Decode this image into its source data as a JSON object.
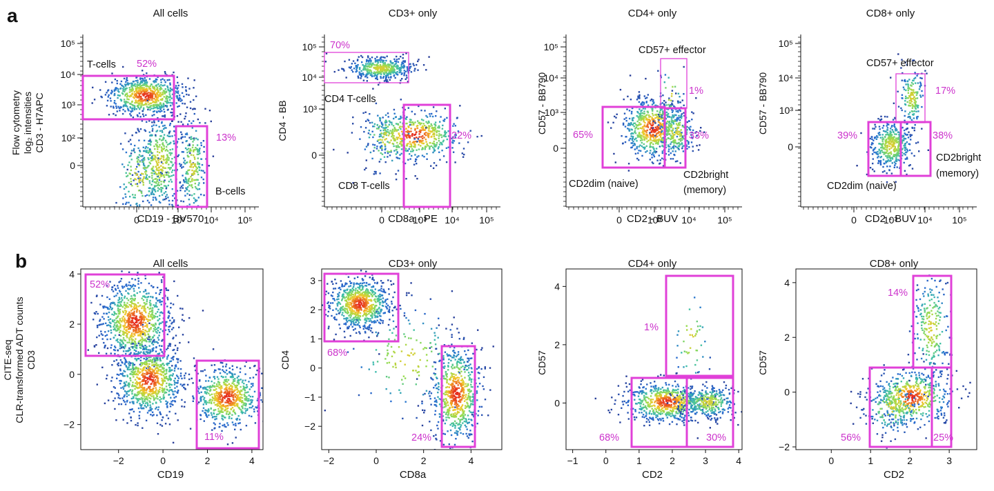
{
  "panel_letters": [
    "a",
    "b"
  ],
  "colors": {
    "gate": "#e040d8",
    "gate_text": "#cc33cc",
    "axis": "#111111"
  },
  "chart_data": [
    {
      "type": "scatter",
      "row": "a",
      "title": "All cells",
      "xlabel": [
        "CD19 - BV570"
      ],
      "ylabel": [
        "Flow cytometry",
        "log₂ intensities",
        "CD3 - H7APC"
      ],
      "scale": "log",
      "xticks": [
        "0",
        "10³",
        "10⁴",
        "10⁵"
      ],
      "yticks": [
        "0",
        "10²",
        "10³",
        "10⁴",
        "10⁵"
      ],
      "gates": [
        {
          "label": "T-cells",
          "pct": "52%"
        },
        {
          "label": "B-cells",
          "pct": "13%"
        }
      ]
    },
    {
      "type": "scatter",
      "row": "a",
      "title": "CD3+ only",
      "xlabel": [
        "CD8a - PE"
      ],
      "ylabel": [
        "CD4 - BB"
      ],
      "scale": "log",
      "xticks": [
        "0",
        "10³",
        "10⁴",
        "10⁵"
      ],
      "yticks": [
        "0",
        "10³",
        "10⁴",
        "10⁵"
      ],
      "gates": [
        {
          "label": "CD4 T-cells",
          "pct": "70%"
        },
        {
          "label": "CD8 T-cells",
          "pct": "22%"
        }
      ]
    },
    {
      "type": "scatter",
      "row": "a",
      "title": "CD4+ only",
      "xlabel": [
        "CD2 - BUV"
      ],
      "ylabel": [
        "CD57 - BB790"
      ],
      "scale": "log",
      "xticks": [
        "0",
        "10³",
        "10⁴",
        "10⁵"
      ],
      "yticks": [
        "0",
        "10³",
        "10⁴",
        "10⁵"
      ],
      "gates": [
        {
          "label": "CD57+ effector",
          "pct": "1%"
        },
        {
          "label": "CD2dim (naive)",
          "pct": "65%"
        },
        {
          "label": "CD2bright (memory)",
          "pct": "33%"
        }
      ]
    },
    {
      "type": "scatter",
      "row": "a",
      "title": "CD8+ only",
      "xlabel": [
        "CD2 - BUV"
      ],
      "ylabel": [
        "CD57 - BB790"
      ],
      "scale": "log",
      "xticks": [
        "0",
        "10³",
        "10⁴",
        "10⁵"
      ],
      "yticks": [
        "0",
        "10³",
        "10⁴",
        "10⁵"
      ],
      "gates": [
        {
          "label": "CD57+ effector",
          "pct": "17%"
        },
        {
          "label": "CD2dim (naive)",
          "pct": "39%"
        },
        {
          "label": "CD2bright (memory)",
          "pct": "38%"
        }
      ]
    },
    {
      "type": "scatter",
      "row": "b",
      "title": "All cells",
      "xlabel": [
        "CD19"
      ],
      "ylabel": [
        "CITE-seq",
        "CLR-transformed ADT counts",
        "CD3"
      ],
      "scale": "linear",
      "xlim": [
        -3.7,
        4.5
      ],
      "ylim": [
        -3,
        4.2
      ],
      "xticks": [
        -2,
        0,
        2,
        4
      ],
      "yticks": [
        -2,
        0,
        2,
        4
      ],
      "gates": [
        {
          "pct": "52%"
        },
        {
          "pct": "11%"
        }
      ]
    },
    {
      "type": "scatter",
      "row": "b",
      "title": "CD3+ only",
      "xlabel": [
        "CD8a"
      ],
      "ylabel": [
        "CD4"
      ],
      "scale": "linear",
      "xlim": [
        -2.3,
        5.3
      ],
      "ylim": [
        -2.8,
        3.4
      ],
      "xticks": [
        -2,
        0,
        2,
        4
      ],
      "yticks": [
        -2,
        -1,
        0,
        1,
        2,
        3
      ],
      "gates": [
        {
          "pct": "68%"
        },
        {
          "pct": "24%"
        }
      ]
    },
    {
      "type": "scatter",
      "row": "b",
      "title": "CD4+ only",
      "xlabel": [
        "CD2"
      ],
      "ylabel": [
        "CD57"
      ],
      "scale": "linear",
      "xlim": [
        -1.2,
        4.1
      ],
      "ylim": [
        -1.6,
        4.6
      ],
      "xticks": [
        -1,
        0,
        1,
        2,
        3,
        4
      ],
      "yticks": [
        0,
        2,
        4
      ],
      "gates": [
        {
          "pct": "1%"
        },
        {
          "pct": "68%"
        },
        {
          "pct": "30%"
        }
      ]
    },
    {
      "type": "scatter",
      "row": "b",
      "title": "CD8+ only",
      "xlabel": [
        "CD2"
      ],
      "ylabel": [
        "CD57"
      ],
      "scale": "linear",
      "xlim": [
        -0.9,
        3.7
      ],
      "ylim": [
        -2.1,
        4.5
      ],
      "xticks": [
        0,
        1,
        2,
        3
      ],
      "yticks": [
        -2,
        0,
        2,
        4
      ],
      "gates": [
        {
          "pct": "14%"
        },
        {
          "pct": "56%"
        },
        {
          "pct": "25%"
        }
      ]
    }
  ]
}
